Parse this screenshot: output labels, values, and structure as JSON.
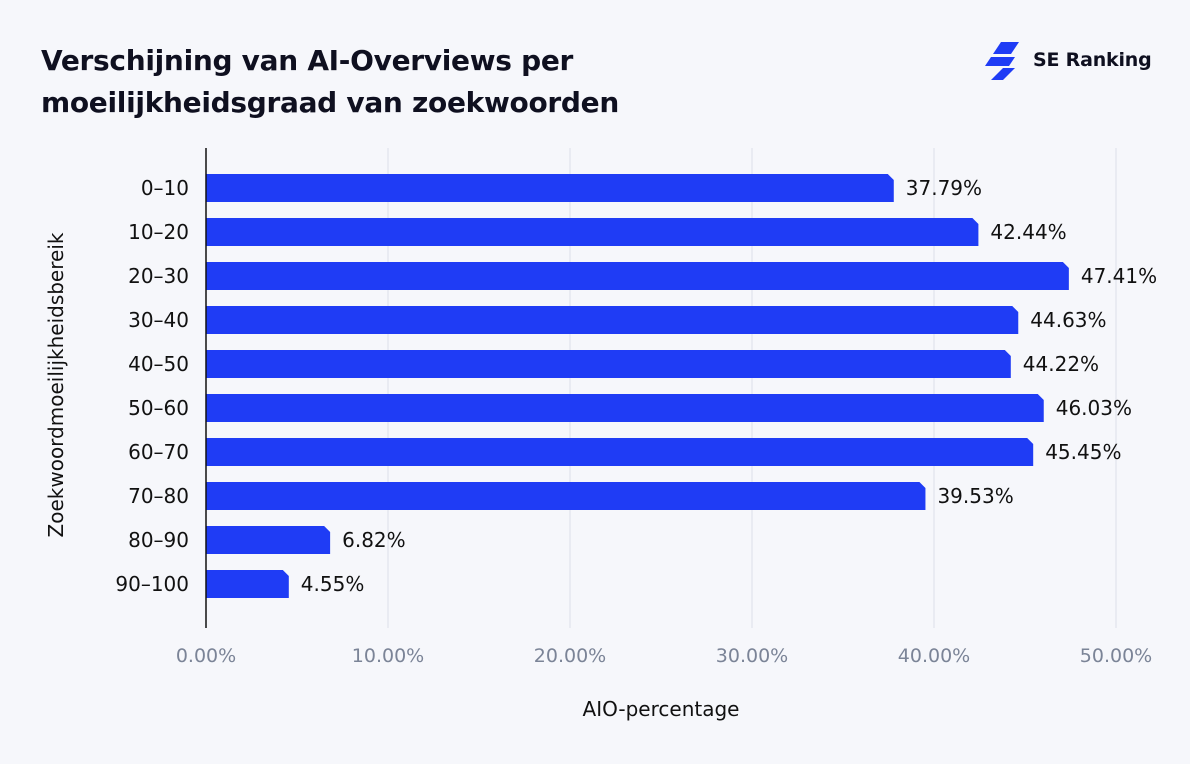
{
  "header": {
    "title": "Verschijning van AI-Overviews per moeilijkheidsgraad van zoekwoorden",
    "brand_name": "SE Ranking",
    "brand_icon": "se-ranking-logo-icon"
  },
  "colors": {
    "bar": "#1f3cf5",
    "background": "#f6f7fb",
    "grid": "#dcdfe8",
    "axis": "#111111",
    "tick_text": "#7b8497",
    "label_text": "#111111"
  },
  "chart_data": {
    "type": "bar",
    "orientation": "horizontal",
    "title": "Verschijning van AI-Overviews per moeilijkheidsgraad van zoekwoorden",
    "xlabel": "AIO-percentage",
    "ylabel": "Zoekwoordmoeilijkheidsbereik",
    "categories": [
      "0–10",
      "10–20",
      "20–30",
      "30–40",
      "40–50",
      "50–60",
      "60–70",
      "70–80",
      "80–90",
      "90–100"
    ],
    "values": [
      37.79,
      42.44,
      47.41,
      44.63,
      44.22,
      46.03,
      45.45,
      39.53,
      6.82,
      4.55
    ],
    "data_labels": [
      "37.79%",
      "42.44%",
      "47.41%",
      "44.63%",
      "44.22%",
      "46.03%",
      "45.45%",
      "39.53%",
      "6.82%",
      "4.55%"
    ],
    "xlim": [
      0,
      50
    ],
    "xticks": [
      0,
      10,
      20,
      30,
      40,
      50
    ],
    "xtick_labels": [
      "0.00%",
      "10.00%",
      "20.00%",
      "30.00%",
      "40.00%",
      "50.00%"
    ],
    "grid": true,
    "legend": "none"
  }
}
